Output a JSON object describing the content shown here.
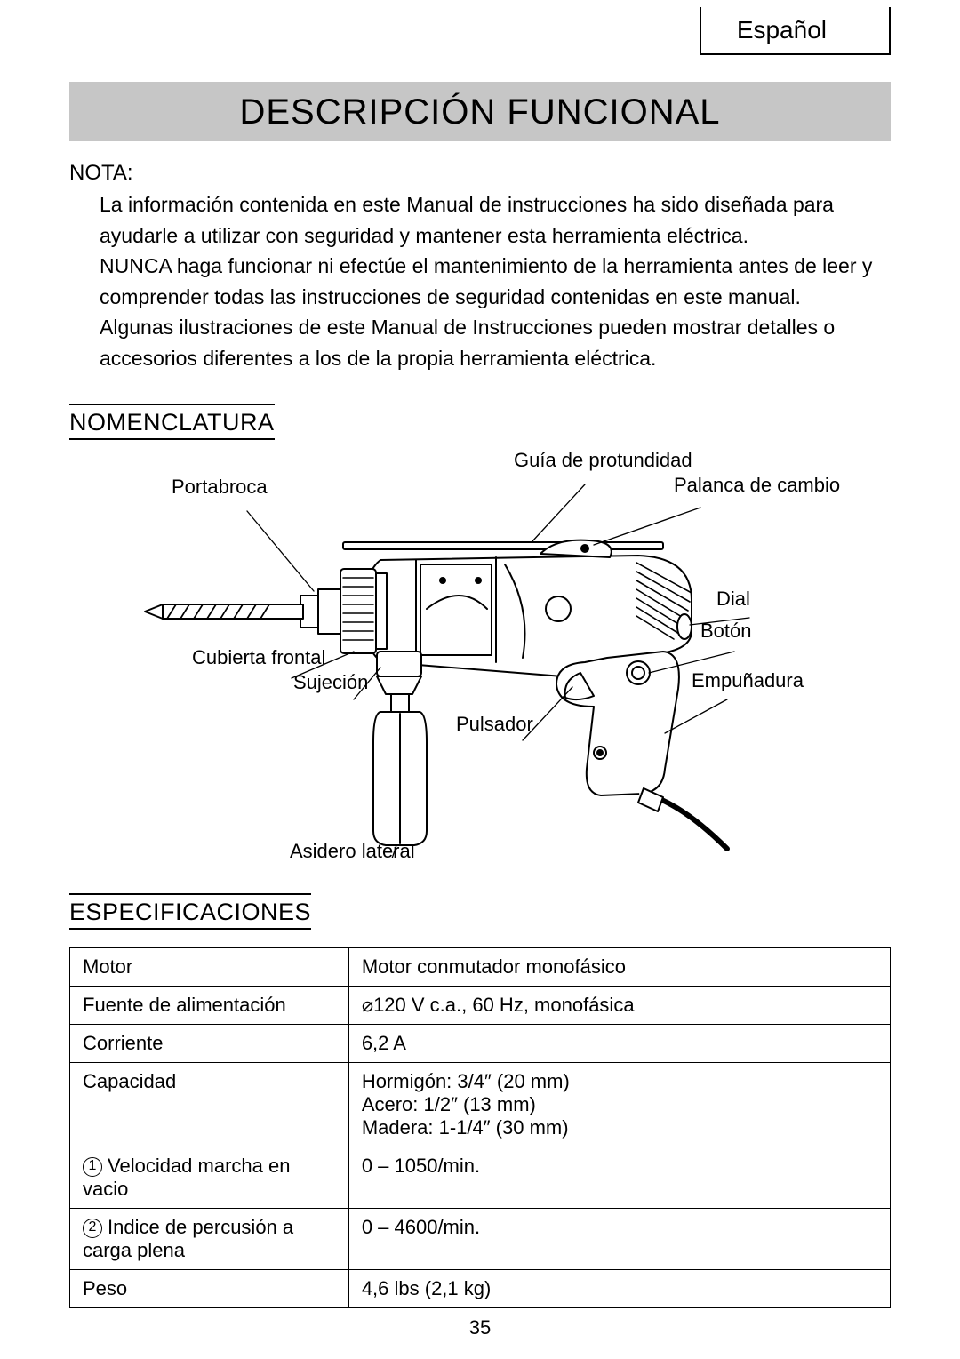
{
  "language_label": "Español",
  "title": "DESCRIPCIÓN FUNCIONAL",
  "nota": {
    "label": "NOTA:",
    "p1": "La información contenida en este Manual de instrucciones ha sido diseñada para ayudarle a utilizar con seguridad y mantener esta herramienta eléctrica.",
    "p2": "NUNCA haga funcionar ni efectúe el mantenimiento de la herramienta antes de leer y comprender todas las instrucciones de seguridad contenidas en este manual.",
    "p3": "Algunas ilustraciones de este Manual de Instrucciones pueden mostrar detalles o accesorios diferentes a los de la propia herramienta eléctrica."
  },
  "nomenclature": {
    "heading": "NOMENCLATURA",
    "labels": {
      "guia": "Guía de protundidad",
      "porta": "Portabroca",
      "cubierta": "Cubierta frontal",
      "sujecion": "Sujeción",
      "asidero": "Asidero lateral",
      "palanca": "Palanca de cambio",
      "dial": "Dial",
      "pulsador": "Pulsador",
      "boton": "Botón",
      "empun": "Empuñadura"
    }
  },
  "specs": {
    "heading": "ESPECIFICACIONES",
    "rows": [
      {
        "k": "Motor",
        "v": "Motor conmutador monofásico"
      },
      {
        "k": "Fuente de alimentación",
        "v": "<span class=\"diam\">&#8960;</span>120 V c.a., 60 Hz, monofásica"
      },
      {
        "k": "Corriente",
        "v": "6,2 A"
      },
      {
        "k": "Capacidad",
        "v": "Hormigón: 3/4&Prime; (20 mm)<br>Acero: 1/2&Prime; (13 mm)<br>Madera: 1-1/4&Prime; (30 mm)"
      },
      {
        "k": "<span class=\"circ\">1</span>Velocidad marcha en vacio",
        "v": "0 – 1050/min."
      },
      {
        "k": "<span class=\"circ\">2</span>Indice de percusión a carga plena",
        "v": "0 – 4600/min."
      },
      {
        "k": "Peso",
        "v": "4,6 lbs (2,1 kg)"
      }
    ]
  },
  "page_number": "35"
}
